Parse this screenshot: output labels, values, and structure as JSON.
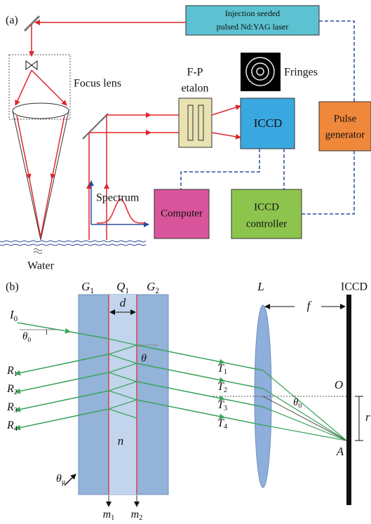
{
  "panel_a": {
    "label": "(a)",
    "laser": [
      "Injection seeded",
      "pulsed Nd:YAG laser"
    ],
    "focus_lens": "Focus lens",
    "etalon": [
      "F-P",
      "etalon"
    ],
    "fringes": "Fringes",
    "iccd": "ICCD",
    "pulse_generator": [
      "Pulse",
      "generator"
    ],
    "spectrum": "Spectrum",
    "computer": "Computer",
    "iccd_controller": [
      "ICCD",
      "controller"
    ],
    "water": "Water"
  },
  "panel_b": {
    "label": "(b)",
    "g1": {
      "text": "G",
      "sub": "1"
    },
    "q1": {
      "text": "Q",
      "sub": "1"
    },
    "g2": {
      "text": "G",
      "sub": "2"
    },
    "d": "d",
    "lens": "L",
    "iccd": "ICCD",
    "f": "f",
    "i0": {
      "text": "I",
      "sub": "0"
    },
    "theta0_in": {
      "text": "θ",
      "sub": "0"
    },
    "theta": "θ",
    "reflected": [
      {
        "text": "R",
        "sub": "1"
      },
      {
        "text": "R",
        "sub": "2"
      },
      {
        "text": "R",
        "sub": "3"
      },
      {
        "text": "R",
        "sub": "4"
      }
    ],
    "transmitted": [
      {
        "text": "T",
        "sub": "1"
      },
      {
        "text": "T",
        "sub": "2"
      },
      {
        "text": "T",
        "sub": "3"
      },
      {
        "text": "T",
        "sub": "4"
      }
    ],
    "o": "O",
    "r": "r",
    "theta0_out": {
      "text": "θ",
      "sub": "0"
    },
    "a": "A",
    "n": "n",
    "theta_mu": {
      "text": "θ",
      "sub": "μ"
    },
    "m1": {
      "text": "m",
      "sub": "1"
    },
    "m2": {
      "text": "m",
      "sub": "2"
    }
  }
}
